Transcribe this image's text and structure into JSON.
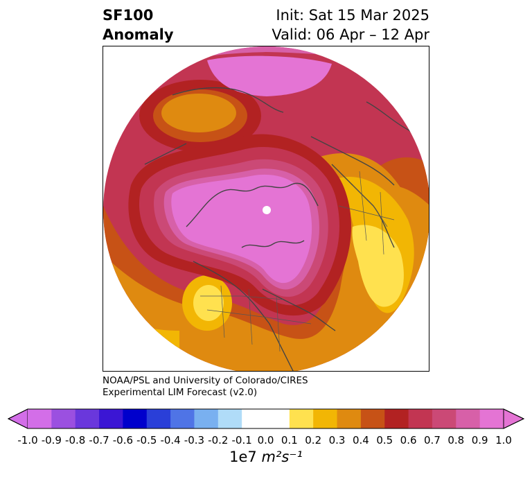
{
  "title": {
    "line1": "SF100",
    "line2": "Anomaly",
    "init": "Init: Sat 15 Mar 2025",
    "valid": "Valid: 06 Apr – 12 Apr"
  },
  "credit": {
    "line1": "NOAA/PSL and University of Colorado/CIRES",
    "line2": "Experimental LIM Forecast (v2.0)"
  },
  "colorbar": {
    "ticks": [
      "-1.0",
      "-0.9",
      "-0.8",
      "-0.7",
      "-0.6",
      "-0.5",
      "-0.4",
      "-0.3",
      "-0.2",
      "-0.1",
      "0.0",
      "0.1",
      "0.2",
      "0.3",
      "0.4",
      "0.5",
      "0.6",
      "0.7",
      "0.8",
      "0.9",
      "1.0"
    ],
    "colors": [
      "#d36ee8",
      "#9b50e0",
      "#6a37dc",
      "#3b16d4",
      "#0000cc",
      "#2a3fd8",
      "#4f74e6",
      "#79b0f0",
      "#b0dcf8",
      "#ffffff",
      "#ffffff",
      "#ffe14f",
      "#f2b604",
      "#df8a10",
      "#c75216",
      "#b22222",
      "#c23552",
      "#cb4976",
      "#d760a8",
      "#e474d4"
    ],
    "extend_low_color": "#d36ee8",
    "extend_high_color": "#e474d4",
    "multiplier": "1e7",
    "units": "m²s⁻¹"
  },
  "map": {
    "projection": "north-polar-stereographic",
    "field": "100 hPa streamfunction anomaly",
    "features": [
      "polar-high-anomaly",
      "north-america-positive-anomaly",
      "eurasia-positive-anomaly",
      "siberia-pacific-positive-anomaly"
    ]
  }
}
